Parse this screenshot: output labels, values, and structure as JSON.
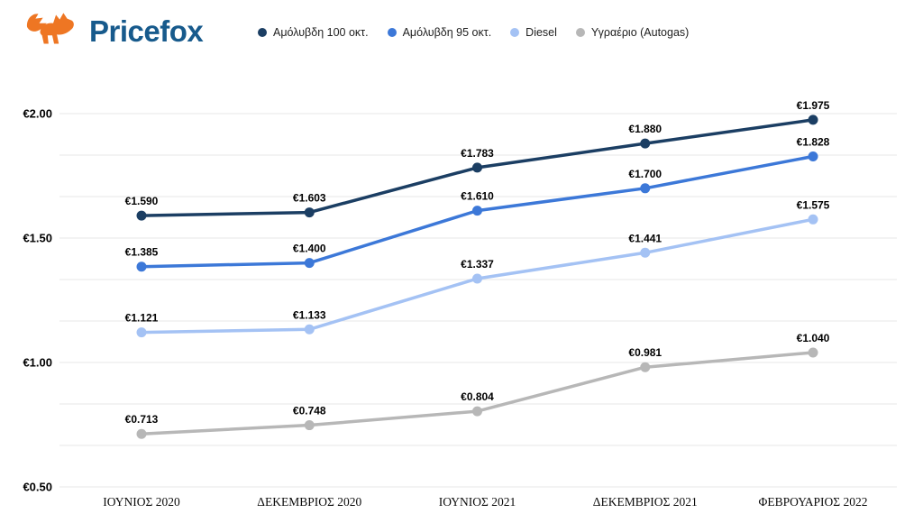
{
  "header": {
    "logo_text": "Pricefox"
  },
  "colors": {
    "logo_orange": "#ee7623",
    "logo_blue": "#175a8c",
    "grid_line": "#e7e7e7",
    "axis_text": "#000000"
  },
  "chart_data": {
    "type": "line",
    "title": "",
    "xlabel": "",
    "ylabel": "",
    "currency_prefix": "€",
    "grid": true,
    "legend_position": "top",
    "ylim": [
      0.5,
      2.0
    ],
    "y_ticks": [
      "€2.00",
      "€1.50",
      "€1.00",
      "€0.50"
    ],
    "categories": [
      "ΙΟΥΝΙΟΣ 2020",
      "ΔΕΚΕΜΒΡΙΟΣ 2020",
      "ΙΟΥΝΙΟΣ 2021",
      "ΔΕΚΕΜΒΡΙΟΣ 2021",
      "ΦΕΒΡΟΥΑΡΙΟΣ 2022"
    ],
    "series": [
      {
        "key": "amolyvdi-100",
        "name": "Αμόλυβδη 100 οκτ.",
        "color": "#1b3e63",
        "values": [
          1.59,
          1.603,
          1.783,
          1.88,
          1.975
        ]
      },
      {
        "key": "amolyvdi-95",
        "name": "Αμόλυβδη 95 οκτ.",
        "color": "#3c78d8",
        "values": [
          1.385,
          1.4,
          1.61,
          1.7,
          1.828
        ]
      },
      {
        "key": "diesel",
        "name": "Diesel",
        "color": "#a4c2f4",
        "values": [
          1.121,
          1.133,
          1.337,
          1.441,
          1.575
        ]
      },
      {
        "key": "ygraerio-autogas",
        "name": "Υγραέριο (Autogas)",
        "color": "#b7b7b7",
        "values": [
          0.713,
          0.748,
          0.804,
          0.981,
          1.04
        ]
      }
    ]
  }
}
